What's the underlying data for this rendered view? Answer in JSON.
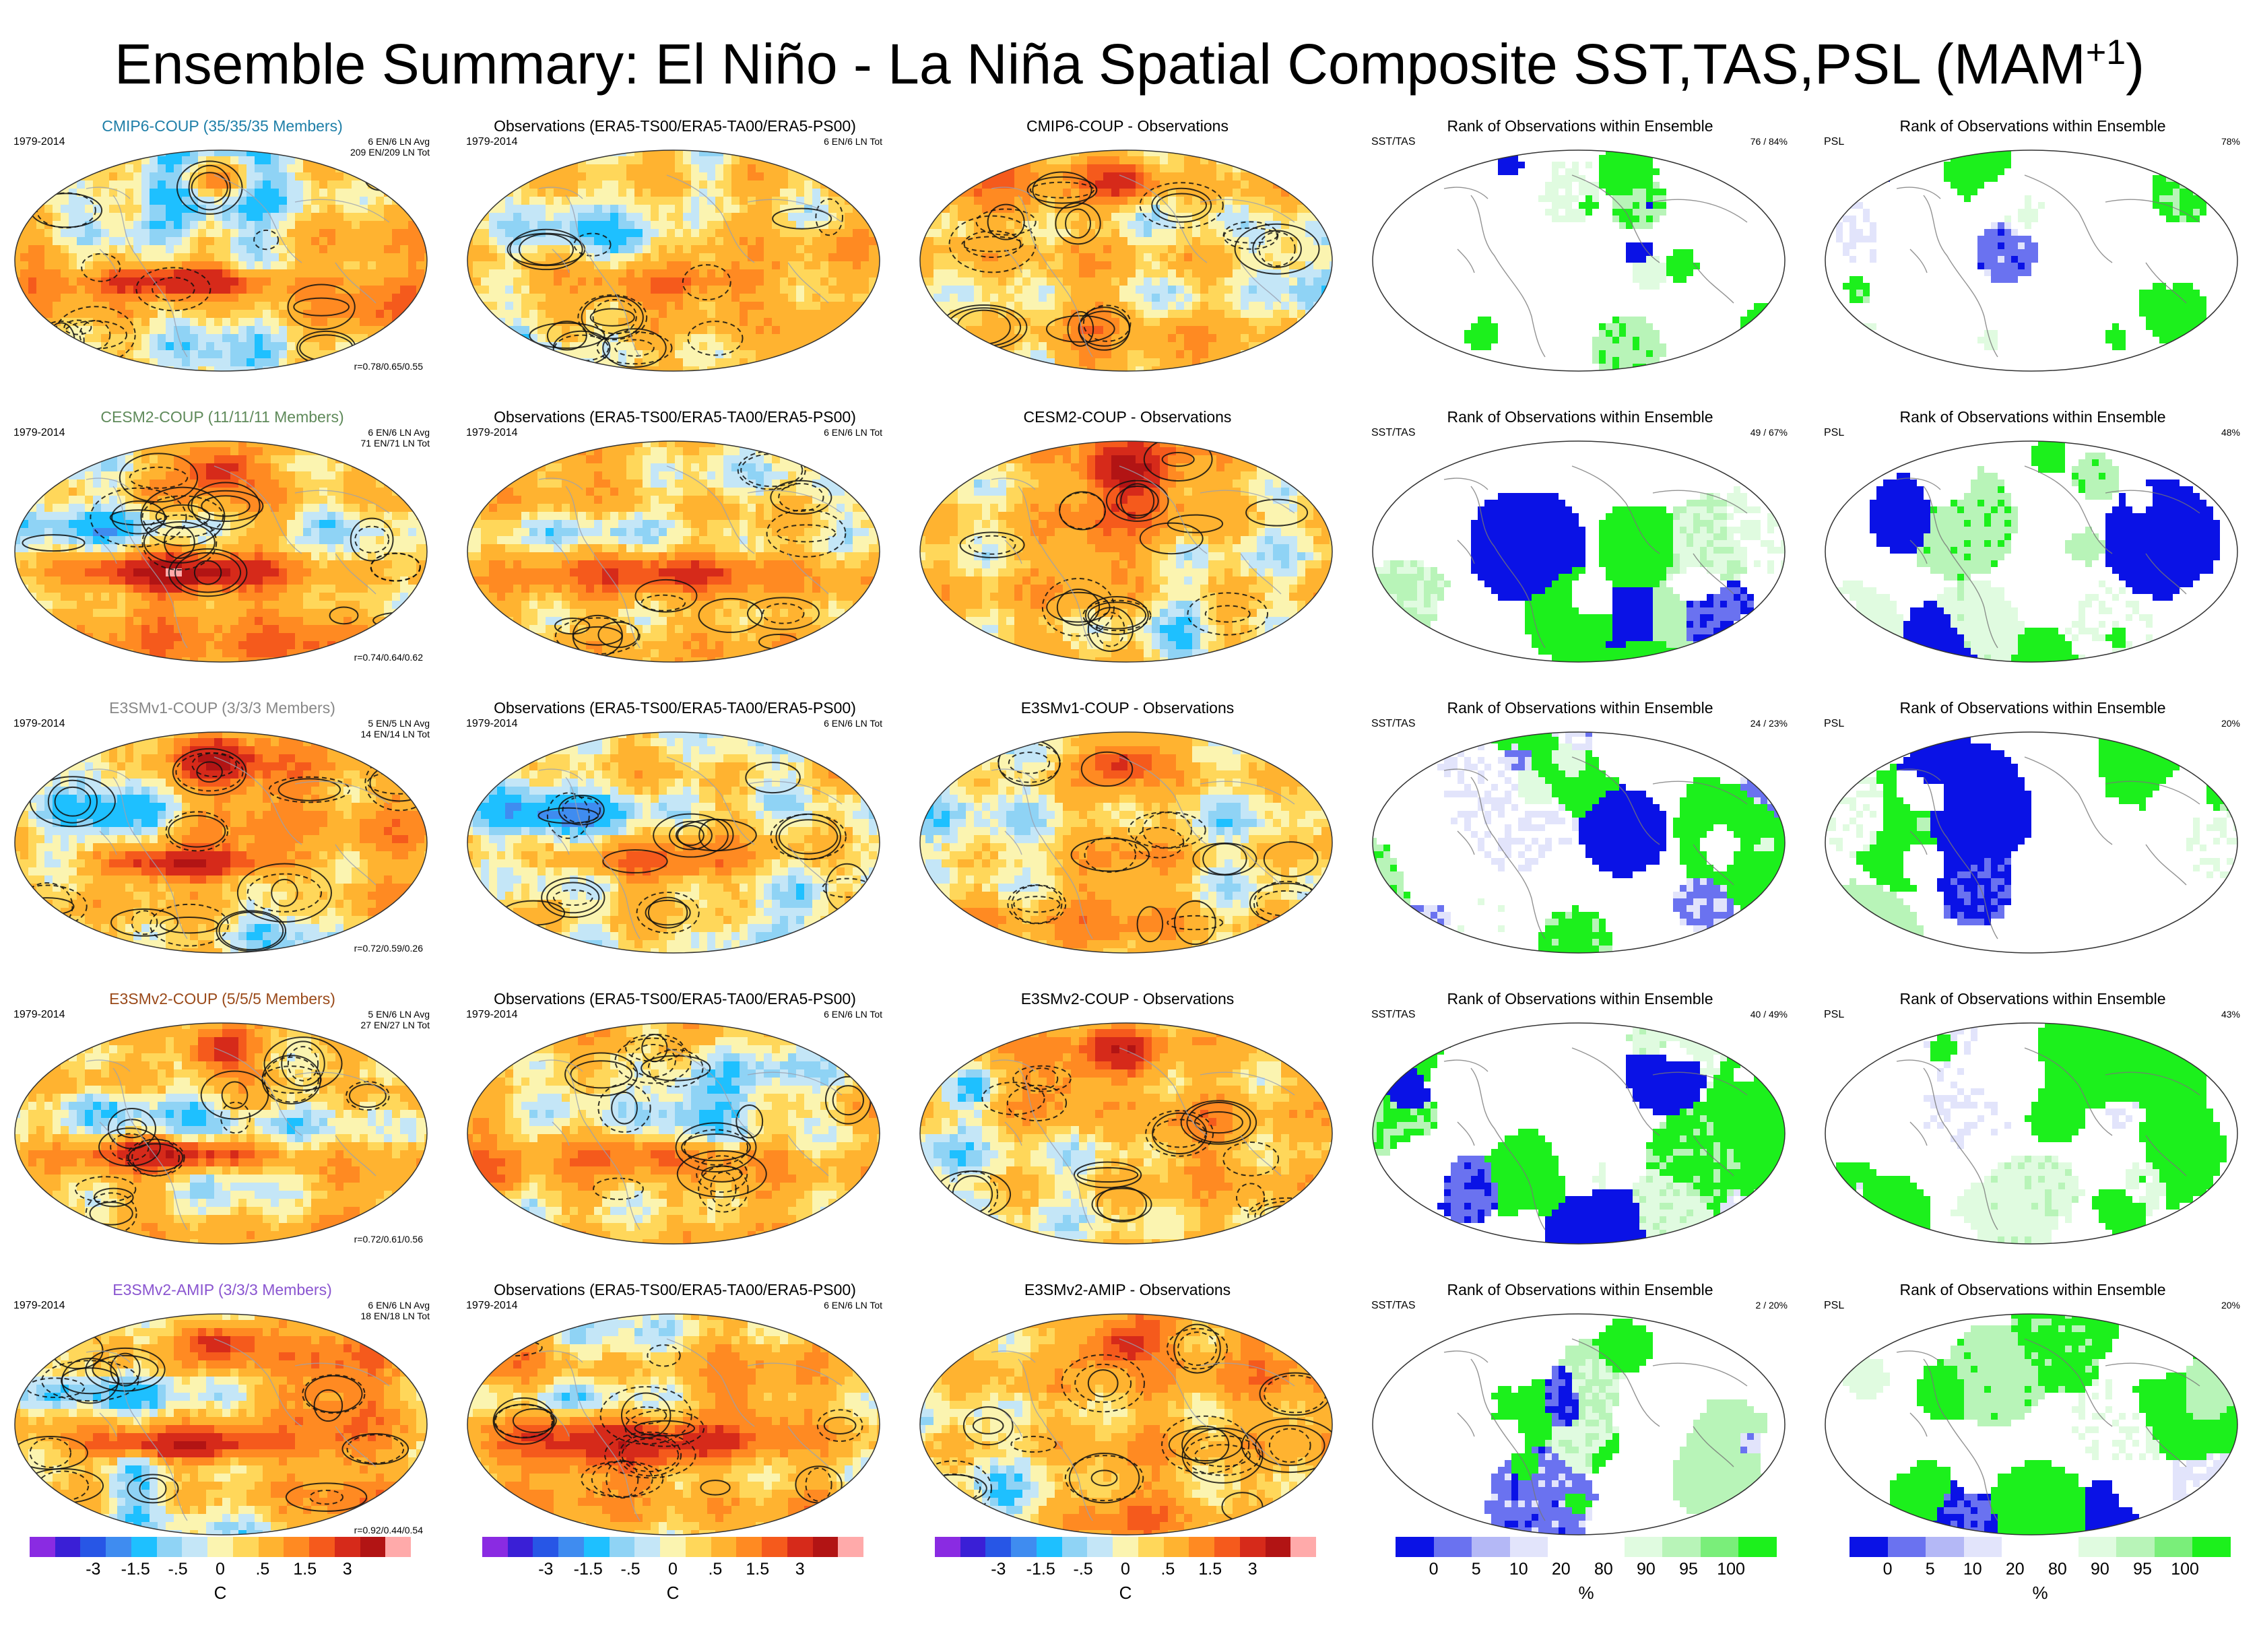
{
  "title": {
    "main": "Ensemble Summary: El Niño - La Niña Spatial Composite SST,TAS,PSL (MAM",
    "sup": "+1",
    "close": ")"
  },
  "colors": {
    "temp_scale": [
      "#8a2be2",
      "#3a1fd6",
      "#2756e6",
      "#3f8cf0",
      "#1ec0ff",
      "#8fd3f5",
      "#c4e6f7",
      "#fbf4b0",
      "#ffd75a",
      "#ffb330",
      "#ff8a22",
      "#f55a1c",
      "#d62a1a",
      "#b21414",
      "#ffaaaa"
    ],
    "rank_scale": [
      "#0a12e6",
      "#6a72f0",
      "#b4b8f6",
      "#e2e4fb",
      "#ffffff",
      "#ffffff",
      "#e0fbe0",
      "#b8f4b8",
      "#7aee7a",
      "#1cf01c"
    ]
  },
  "rows": [
    {
      "model": {
        "title": "CMIP6-COUP (35/35/35 Members)",
        "title_color": "#1f7fa8",
        "years": "1979-2014",
        "counts": [
          "6 EN/6 LN Avg",
          "209 EN/209 LN Tot"
        ],
        "corr": "r=0.78/0.65/0.55"
      },
      "obs": {
        "title": "Observations (ERA5-TS00/ERA5-TA00/ERA5-PS00)",
        "years": "1979-2014",
        "counts": "6 EN/6 LN Tot"
      },
      "diff": {
        "title": "CMIP6-COUP - Observations"
      },
      "rank1": {
        "title": "Rank of Observations within Ensemble",
        "label": "SST/TAS",
        "pct": "76 /  84%"
      },
      "rank2": {
        "title": "Rank of Observations within Ensemble",
        "label": "PSL",
        "pct": "78%"
      }
    },
    {
      "model": {
        "title": "CESM2-COUP (11/11/11 Members)",
        "title_color": "#5f8a5a",
        "years": "1979-2014",
        "counts": [
          "6 EN/6 LN Avg",
          "71 EN/71 LN Tot"
        ],
        "corr": "r=0.74/0.64/0.62"
      },
      "obs": {
        "title": "Observations (ERA5-TS00/ERA5-TA00/ERA5-PS00)",
        "years": "1979-2014",
        "counts": "6 EN/6 LN Tot"
      },
      "diff": {
        "title": "CESM2-COUP - Observations"
      },
      "rank1": {
        "title": "Rank of Observations within Ensemble",
        "label": "SST/TAS",
        "pct": "49 /  67%"
      },
      "rank2": {
        "title": "Rank of Observations within Ensemble",
        "label": "PSL",
        "pct": "48%"
      }
    },
    {
      "model": {
        "title": "E3SMv1-COUP (3/3/3 Members)",
        "title_color": "#888888",
        "years": "1979-2014",
        "counts": [
          "5 EN/5 LN Avg",
          "14 EN/14 LN Tot"
        ],
        "corr": "r=0.72/0.59/0.26"
      },
      "obs": {
        "title": "Observations (ERA5-TS00/ERA5-TA00/ERA5-PS00)",
        "years": "1979-2014",
        "counts": "6 EN/6 LN Tot"
      },
      "diff": {
        "title": "E3SMv1-COUP - Observations"
      },
      "rank1": {
        "title": "Rank of Observations within Ensemble",
        "label": "SST/TAS",
        "pct": "24 /  23%"
      },
      "rank2": {
        "title": "Rank of Observations within Ensemble",
        "label": "PSL",
        "pct": "20%"
      }
    },
    {
      "model": {
        "title": "E3SMv2-COUP (5/5/5 Members)",
        "title_color": "#9a4a1a",
        "years": "1979-2014",
        "counts": [
          "5 EN/6 LN Avg",
          "27 EN/27 LN Tot"
        ],
        "corr": "r=0.72/0.61/0.56"
      },
      "obs": {
        "title": "Observations (ERA5-TS00/ERA5-TA00/ERA5-PS00)",
        "years": "1979-2014",
        "counts": "6 EN/6 LN Tot"
      },
      "diff": {
        "title": "E3SMv2-COUP - Observations"
      },
      "rank1": {
        "title": "Rank of Observations within Ensemble",
        "label": "SST/TAS",
        "pct": "40 /  49%"
      },
      "rank2": {
        "title": "Rank of Observations within Ensemble",
        "label": "PSL",
        "pct": "43%"
      }
    },
    {
      "model": {
        "title": "E3SMv2-AMIP (3/3/3 Members)",
        "title_color": "#8a55d0",
        "years": "1979-2014",
        "counts": [
          "6 EN/6 LN Avg",
          "18 EN/18 LN Tot"
        ],
        "corr": "r=0.92/0.44/0.54"
      },
      "obs": {
        "title": "Observations (ERA5-TS00/ERA5-TA00/ERA5-PS00)",
        "years": "1979-2014",
        "counts": "6 EN/6 LN Tot"
      },
      "diff": {
        "title": "E3SMv2-AMIP - Observations"
      },
      "rank1": {
        "title": "Rank of Observations within Ensemble",
        "label": "SST/TAS",
        "pct": "2 /  20%"
      },
      "rank2": {
        "title": "Rank of Observations within Ensemble",
        "label": "PSL",
        "pct": "20%"
      }
    }
  ],
  "colorbars": [
    {
      "kind": "temp",
      "ticks": [
        "-3",
        "-1.5",
        "-.5",
        "0",
        ".5",
        "1.5",
        "3"
      ],
      "unit": "C"
    },
    {
      "kind": "temp",
      "ticks": [
        "-3",
        "-1.5",
        "-.5",
        "0",
        ".5",
        "1.5",
        "3"
      ],
      "unit": "C"
    },
    {
      "kind": "temp",
      "ticks": [
        "-3",
        "-1.5",
        "-.5",
        "0",
        ".5",
        "1.5",
        "3"
      ],
      "unit": "C"
    },
    {
      "kind": "rank",
      "ticks": [
        "0",
        "5",
        "10",
        "20",
        "80",
        "90",
        "95",
        "100"
      ],
      "unit": "%"
    },
    {
      "kind": "rank",
      "ticks": [
        "0",
        "5",
        "10",
        "20",
        "80",
        "90",
        "95",
        "100"
      ],
      "unit": "%"
    }
  ]
}
